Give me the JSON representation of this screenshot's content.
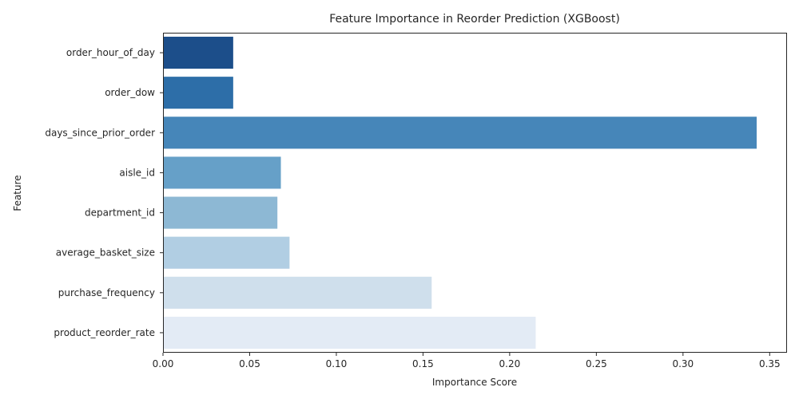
{
  "chart_data": {
    "type": "bar",
    "orientation": "horizontal",
    "title": "Feature Importance in Reorder Prediction (XGBoost)",
    "xlabel": "Importance Score",
    "ylabel": "Feature",
    "categories": [
      "order_hour_of_day",
      "order_dow",
      "days_since_prior_order",
      "aisle_id",
      "department_id",
      "average_basket_size",
      "purchase_frequency",
      "product_reorder_rate"
    ],
    "values": [
      0.0405,
      0.0405,
      0.3425,
      0.068,
      0.066,
      0.073,
      0.155,
      0.215
    ],
    "colors": [
      "#1c4e8a",
      "#2d6ea8",
      "#4686b9",
      "#66a0c8",
      "#8db8d4",
      "#b1cee3",
      "#cfdfec",
      "#e3ebf5"
    ],
    "xlim": [
      0,
      0.36
    ],
    "xticks": [
      "0.00",
      "0.05",
      "0.10",
      "0.15",
      "0.20",
      "0.25",
      "0.30",
      "0.35"
    ],
    "xtick_values": [
      0,
      0.05,
      0.1,
      0.15,
      0.2,
      0.25,
      0.3,
      0.35
    ],
    "grid": false,
    "legend": "none"
  }
}
